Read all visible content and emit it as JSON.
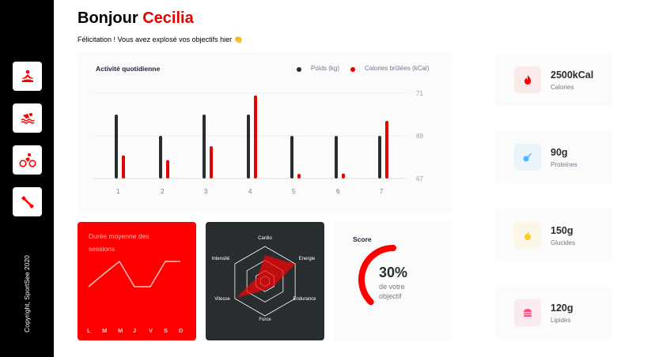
{
  "sidebar": {
    "items": [
      {
        "icon": "yoga-icon"
      },
      {
        "icon": "swimming-icon"
      },
      {
        "icon": "cycling-icon"
      },
      {
        "icon": "dumbbell-icon"
      }
    ],
    "copyright": "Copyright, SportSee 2020"
  },
  "header": {
    "greeting": "Bonjour",
    "name": "Cecilia",
    "subtitle": "Félicitation ! Vous avez explosé vos objectifs hier 👏"
  },
  "colors": {
    "accent": "#FF0000",
    "dark": "#282D30",
    "card_bg": "#FBFBFB"
  },
  "chart_data": [
    {
      "type": "bar",
      "title": "Activité quotidienne",
      "categories": [
        "1",
        "2",
        "3",
        "4",
        "5",
        "6",
        "7"
      ],
      "series": [
        {
          "name": "Poids (kg)",
          "values": [
            70,
            69,
            70,
            70,
            69,
            69,
            69
          ],
          "color": "#282D30"
        },
        {
          "name": "Calories brûlées (kCal)",
          "values": [
            240,
            220,
            280,
            500,
            160,
            162,
            390
          ],
          "color": "#E60000"
        }
      ],
      "yticks": [
        "71",
        "69",
        "67"
      ],
      "ylim": [
        67,
        71
      ],
      "legend": "top-right",
      "grid": true
    },
    {
      "type": "line",
      "title": "Durée moyenne des sessions",
      "categories": [
        "L",
        "M",
        "M",
        "J",
        "V",
        "S",
        "D"
      ],
      "values": [
        30,
        40,
        50,
        30,
        30,
        50,
        50
      ]
    },
    {
      "type": "radar",
      "categories": [
        "Cardio",
        "Energie",
        "Endurance",
        "Force",
        "Vitesse",
        "Intensité"
      ],
      "values": [
        180,
        240,
        70,
        60,
        230,
        60
      ],
      "max": 240
    },
    {
      "type": "radial",
      "title": "Score",
      "value": 30,
      "label": "30%",
      "caption1": "de votre",
      "caption2": "objectif"
    }
  ],
  "key_data": [
    {
      "value": "2500kCal",
      "label": "Calories",
      "icon": "fire-icon",
      "color": "#FF0000",
      "bg": "#FBEAEA"
    },
    {
      "value": "90g",
      "label": "Proteines",
      "icon": "chicken-icon",
      "color": "#4AB8FF",
      "bg": "#E9F4FB"
    },
    {
      "value": "150g",
      "label": "Glucides",
      "icon": "apple-icon",
      "color": "#F9CE23",
      "bg": "#FBF6E5"
    },
    {
      "value": "120g",
      "label": "Lipides",
      "icon": "burger-icon",
      "color": "#FD5181",
      "bg": "#FBEAEF"
    }
  ]
}
